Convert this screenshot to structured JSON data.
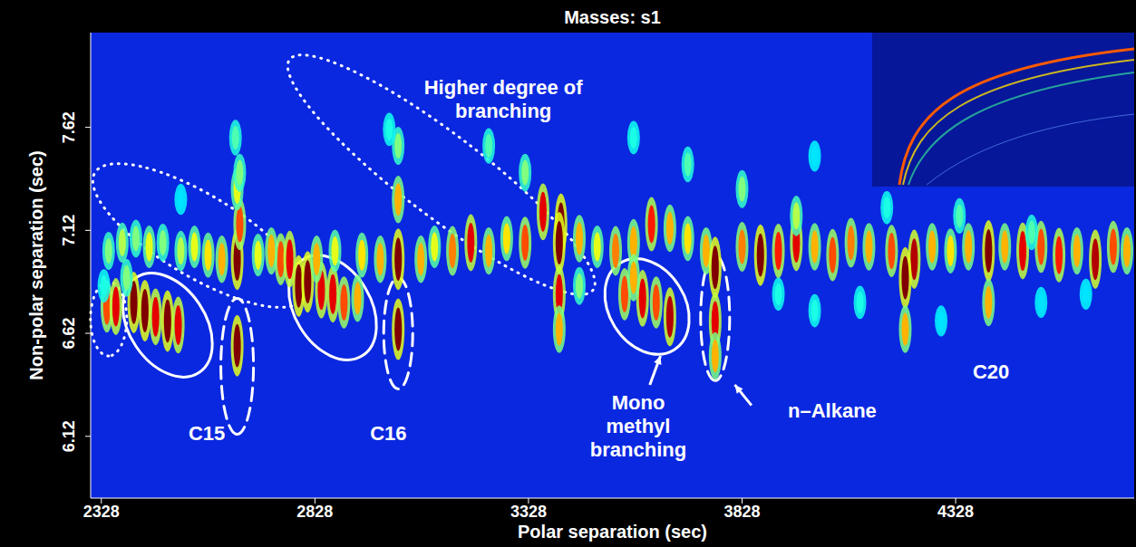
{
  "chart_data": {
    "type": "scatter",
    "title": "Masses: s1",
    "x_label": "Polar separation (sec)",
    "y_label": "Non-polar separation (sec)",
    "xlim": [
      2303,
      4746
    ],
    "xticks": [
      2328,
      2828,
      3328,
      3828,
      4328
    ],
    "ylim": [
      5.82,
      8.08
    ],
    "yticks": [
      6.12,
      6.62,
      7.12,
      7.62
    ],
    "intensity_range": [
      0,
      1
    ],
    "x": [
      2341,
      2362,
      2404,
      2430,
      2455,
      2483,
      2508,
      2387,
      2334,
      2646,
      2646,
      2652,
      2646,
      2790,
      2811,
      2843,
      2870,
      2896,
      2928,
      2748,
      3023,
      3023,
      3023,
      2345,
      2377,
      2409,
      2440,
      2472,
      2514,
      2546,
      2578,
      2610,
      2695,
      2726,
      2769,
      2832,
      2875,
      2938,
      2981,
      3076,
      3108,
      3150,
      3193,
      3235,
      3277,
      3320,
      3362,
      3404,
      3447,
      3489,
      3532,
      3574,
      3616,
      3659,
      3701,
      3744,
      3828,
      3871,
      3913,
      3955,
      3998,
      4040,
      4083,
      4125,
      4178,
      4231,
      4273,
      4316,
      4358,
      4443,
      4485,
      4528,
      4570,
      4612,
      4655,
      4697,
      4729,
      3553,
      3595,
      3627,
      3659,
      3574,
      3400,
      3400,
      3400,
      3765,
      3765,
      3765,
      4210,
      4210,
      4405,
      4405,
      3235,
      3320,
      3574,
      3701,
      3828,
      3955,
      3998,
      4167,
      4337,
      4506,
      2514,
      2642,
      2652,
      3023,
      3002,
      3998,
      4104,
      4528,
      4633,
      4294,
      3447,
      3913
    ],
    "y": [
      6.75,
      6.75,
      6.77,
      6.73,
      6.7,
      6.68,
      6.66,
      6.89,
      6.85,
      6.56,
      6.98,
      7.15,
      7.32,
      6.85,
      6.87,
      6.83,
      6.81,
      6.77,
      6.79,
      6.98,
      6.64,
      6.98,
      7.27,
      7.02,
      7.06,
      7.08,
      7.04,
      7.06,
      7.02,
      7.04,
      7.0,
      6.98,
      7.0,
      7.02,
      6.98,
      6.98,
      7.02,
      7.0,
      6.98,
      6.98,
      7.04,
      7.02,
      7.06,
      7.02,
      7.08,
      7.06,
      7.21,
      7.15,
      7.08,
      7.04,
      7.02,
      7.06,
      7.15,
      7.13,
      7.08,
      7.02,
      7.04,
      7.0,
      7.02,
      7.06,
      7.04,
      7.0,
      7.06,
      7.04,
      7.02,
      6.98,
      7.04,
      7.02,
      7.04,
      7.04,
      7.02,
      7.04,
      7.0,
      7.02,
      6.98,
      7.04,
      7.02,
      6.81,
      6.79,
      6.77,
      6.7,
      6.89,
      7.06,
      6.81,
      6.64,
      6.94,
      6.68,
      6.51,
      6.89,
      6.64,
      7.02,
      6.77,
      7.53,
      7.4,
      7.57,
      7.44,
      7.32,
      7.19,
      7.48,
      7.23,
      7.19,
      7.11,
      7.27,
      7.57,
      7.4,
      7.53,
      7.61,
      6.73,
      6.77,
      6.77,
      6.81,
      6.68,
      6.85,
      6.81
    ],
    "intensity": [
      0.8,
      0.9,
      1,
      1,
      0.9,
      1,
      0.9,
      0.5,
      0.4,
      1,
      1,
      0.8,
      0.6,
      1,
      1,
      0.9,
      0.9,
      0.8,
      0.7,
      0.8,
      1,
      1,
      0.7,
      0.5,
      0.55,
      0.5,
      0.6,
      0.5,
      0.55,
      0.6,
      0.65,
      0.7,
      0.6,
      0.7,
      0.9,
      0.7,
      0.6,
      0.65,
      0.7,
      0.7,
      0.6,
      0.75,
      0.9,
      0.7,
      0.65,
      0.8,
      0.9,
      1,
      0.7,
      0.6,
      0.75,
      0.7,
      0.85,
      0.7,
      0.65,
      0.7,
      0.75,
      1,
      0.85,
      0.9,
      0.7,
      0.8,
      0.75,
      0.7,
      0.8,
      0.95,
      0.7,
      0.65,
      0.7,
      0.7,
      0.9,
      0.8,
      0.85,
      0.7,
      0.95,
      0.8,
      0.7,
      0.8,
      0.9,
      0.8,
      0.95,
      0.7,
      1,
      0.9,
      0.7,
      1,
      0.9,
      0.7,
      1,
      0.7,
      1,
      0.7,
      0.45,
      0.5,
      0.4,
      0.45,
      0.5,
      0.55,
      0.35,
      0.4,
      0.45,
      0.45,
      0.35,
      0.45,
      0.5,
      0.5,
      0.4,
      0.4,
      0.4,
      0.35,
      0.35,
      0.35,
      0.5,
      0.4
    ],
    "regions": [
      {
        "x": [
          2345,
          2345
        ],
        "y": [
          6.87,
          6.51
        ],
        "line_style": "dotted"
      },
      {
        "x": [
          2313,
          2801
        ],
        "y": [
          7.4,
          6.79
        ],
        "line_style": "dotted"
      },
      {
        "x": [
          2769,
          3479
        ],
        "y": [
          7.95,
          6.83
        ],
        "line_style": "dotted"
      },
      {
        "x": [
          2409,
          2557
        ],
        "y": [
          6.89,
          6.43
        ],
        "line_style": "solid"
      },
      {
        "x": [
          2646,
          2646
        ],
        "y": [
          6.79,
          6.13
        ],
        "line_style": "dashed"
      },
      {
        "x": [
          2801,
          2938
        ],
        "y": [
          6.98,
          6.51
        ],
        "line_style": "solid"
      },
      {
        "x": [
          3023,
          3023
        ],
        "y": [
          6.89,
          6.35
        ],
        "line_style": "dashed"
      },
      {
        "x": [
          3542,
          3669
        ],
        "y": [
          6.96,
          6.54
        ],
        "line_style": "solid"
      },
      {
        "x": [
          3765,
          3765
        ],
        "y": [
          7.0,
          6.39
        ],
        "line_style": "dashed"
      }
    ],
    "annotations": [
      {
        "text": "Higher degree of branching",
        "x": 3269,
        "y": 7.78
      },
      {
        "text": "C15",
        "x": 2575,
        "y": 6.1
      },
      {
        "text": "C16",
        "x": 3000,
        "y": 6.1
      },
      {
        "text": "Mono methyl branching",
        "x": 3585,
        "y": 6.25,
        "arrow": {
          "x": [
            3612,
            3637
          ],
          "y": [
            6.37,
            6.51
          ]
        }
      },
      {
        "text": "n–Alkane",
        "x": 4039,
        "y": 6.21,
        "arrow": {
          "x": [
            3850,
            3811
          ],
          "y": [
            6.27,
            6.37
          ]
        }
      },
      {
        "text": "C20",
        "x": 4411,
        "y": 6.4
      }
    ]
  }
}
